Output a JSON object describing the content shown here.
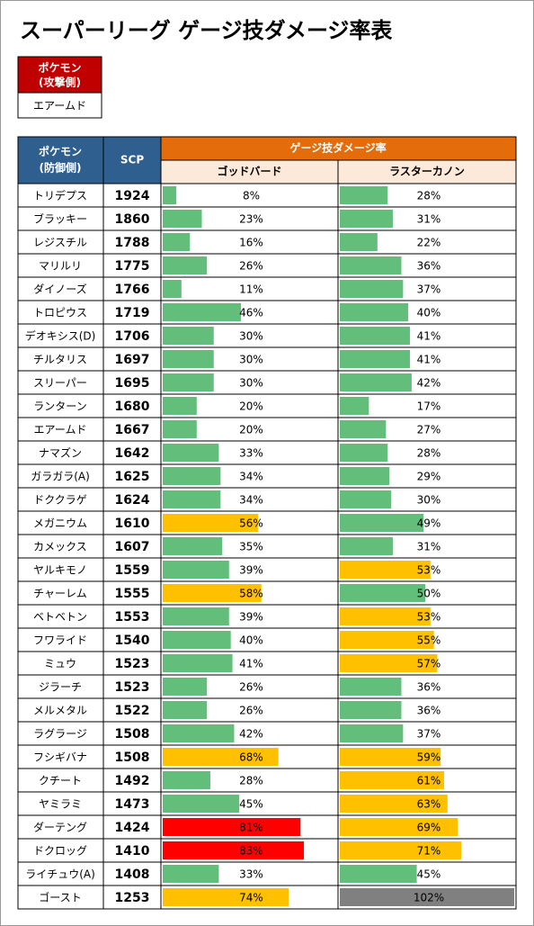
{
  "title": "スーパーリーグ ゲージ技ダメージ率表",
  "attacker": {
    "header": [
      "ポケモン",
      "(攻撃側)"
    ],
    "name": "エアームド"
  },
  "table": {
    "header": {
      "defender": [
        "ポケモン",
        "(防御側)"
      ],
      "scp": "SCP",
      "group": "ゲージ技ダメージ率",
      "moves": [
        "ゴッドバード",
        "ラスターカノン"
      ]
    },
    "rows": [
      {
        "name": "トリデプス",
        "scp": 1924,
        "values": [
          8,
          28
        ],
        "value_labels": [
          "8%",
          "28%"
        ],
        "colors": [
          "#63be7b",
          "#63be7b"
        ]
      },
      {
        "name": "ブラッキー",
        "scp": 1860,
        "values": [
          23,
          31
        ],
        "value_labels": [
          "23%",
          "31%"
        ],
        "colors": [
          "#63be7b",
          "#63be7b"
        ]
      },
      {
        "name": "レジスチル",
        "scp": 1788,
        "values": [
          16,
          22
        ],
        "value_labels": [
          "16%",
          "22%"
        ],
        "colors": [
          "#63be7b",
          "#63be7b"
        ]
      },
      {
        "name": "マリルリ",
        "scp": 1775,
        "values": [
          26,
          36
        ],
        "value_labels": [
          "26%",
          "36%"
        ],
        "colors": [
          "#63be7b",
          "#63be7b"
        ]
      },
      {
        "name": "ダイノーズ",
        "scp": 1766,
        "values": [
          11,
          37
        ],
        "value_labels": [
          "11%",
          "37%"
        ],
        "colors": [
          "#63be7b",
          "#63be7b"
        ]
      },
      {
        "name": "トロピウス",
        "scp": 1719,
        "values": [
          46,
          40
        ],
        "value_labels": [
          "46%",
          "40%"
        ],
        "colors": [
          "#63be7b",
          "#63be7b"
        ]
      },
      {
        "name": "デオキシス(D)",
        "scp": 1706,
        "values": [
          30,
          41
        ],
        "value_labels": [
          "30%",
          "41%"
        ],
        "colors": [
          "#63be7b",
          "#63be7b"
        ]
      },
      {
        "name": "チルタリス",
        "scp": 1697,
        "values": [
          30,
          41
        ],
        "value_labels": [
          "30%",
          "41%"
        ],
        "colors": [
          "#63be7b",
          "#63be7b"
        ]
      },
      {
        "name": "スリーパー",
        "scp": 1695,
        "values": [
          30,
          42
        ],
        "value_labels": [
          "30%",
          "42%"
        ],
        "colors": [
          "#63be7b",
          "#63be7b"
        ]
      },
      {
        "name": "ランターン",
        "scp": 1680,
        "values": [
          20,
          17
        ],
        "value_labels": [
          "20%",
          "17%"
        ],
        "colors": [
          "#63be7b",
          "#63be7b"
        ]
      },
      {
        "name": "エアームド",
        "scp": 1667,
        "values": [
          20,
          27
        ],
        "value_labels": [
          "20%",
          "27%"
        ],
        "colors": [
          "#63be7b",
          "#63be7b"
        ]
      },
      {
        "name": "ナマズン",
        "scp": 1642,
        "values": [
          33,
          28
        ],
        "value_labels": [
          "33%",
          "28%"
        ],
        "colors": [
          "#63be7b",
          "#63be7b"
        ]
      },
      {
        "name": "ガラガラ(A)",
        "scp": 1625,
        "values": [
          34,
          29
        ],
        "value_labels": [
          "34%",
          "29%"
        ],
        "colors": [
          "#63be7b",
          "#63be7b"
        ]
      },
      {
        "name": "ドククラゲ",
        "scp": 1624,
        "values": [
          34,
          30
        ],
        "value_labels": [
          "34%",
          "30%"
        ],
        "colors": [
          "#63be7b",
          "#63be7b"
        ]
      },
      {
        "name": "メガニウム",
        "scp": 1610,
        "values": [
          56,
          49
        ],
        "value_labels": [
          "56%",
          "49%"
        ],
        "colors": [
          "#ffc000",
          "#63be7b"
        ]
      },
      {
        "name": "カメックス",
        "scp": 1607,
        "values": [
          35,
          31
        ],
        "value_labels": [
          "35%",
          "31%"
        ],
        "colors": [
          "#63be7b",
          "#63be7b"
        ]
      },
      {
        "name": "ヤルキモノ",
        "scp": 1559,
        "values": [
          39,
          53
        ],
        "value_labels": [
          "39%",
          "53%"
        ],
        "colors": [
          "#63be7b",
          "#ffc000"
        ]
      },
      {
        "name": "チャーレム",
        "scp": 1555,
        "values": [
          58,
          50
        ],
        "value_labels": [
          "58%",
          "50%"
        ],
        "colors": [
          "#ffc000",
          "#63be7b"
        ]
      },
      {
        "name": "ベトベトン",
        "scp": 1553,
        "values": [
          39,
          53
        ],
        "value_labels": [
          "39%",
          "53%"
        ],
        "colors": [
          "#63be7b",
          "#ffc000"
        ]
      },
      {
        "name": "フワライド",
        "scp": 1540,
        "values": [
          40,
          55
        ],
        "value_labels": [
          "40%",
          "55%"
        ],
        "colors": [
          "#63be7b",
          "#ffc000"
        ]
      },
      {
        "name": "ミュウ",
        "scp": 1523,
        "values": [
          41,
          57
        ],
        "value_labels": [
          "41%",
          "57%"
        ],
        "colors": [
          "#63be7b",
          "#ffc000"
        ]
      },
      {
        "name": "ジラーチ",
        "scp": 1523,
        "values": [
          26,
          36
        ],
        "value_labels": [
          "26%",
          "36%"
        ],
        "colors": [
          "#63be7b",
          "#63be7b"
        ]
      },
      {
        "name": "メルメタル",
        "scp": 1522,
        "values": [
          26,
          36
        ],
        "value_labels": [
          "26%",
          "36%"
        ],
        "colors": [
          "#63be7b",
          "#63be7b"
        ]
      },
      {
        "name": "ラグラージ",
        "scp": 1508,
        "values": [
          42,
          37
        ],
        "value_labels": [
          "42%",
          "37%"
        ],
        "colors": [
          "#63be7b",
          "#63be7b"
        ]
      },
      {
        "name": "フシギバナ",
        "scp": 1508,
        "values": [
          68,
          59
        ],
        "value_labels": [
          "68%",
          "59%"
        ],
        "colors": [
          "#ffc000",
          "#ffc000"
        ]
      },
      {
        "name": "クチート",
        "scp": 1492,
        "values": [
          28,
          61
        ],
        "value_labels": [
          "28%",
          "61%"
        ],
        "colors": [
          "#63be7b",
          "#ffc000"
        ]
      },
      {
        "name": "ヤミラミ",
        "scp": 1473,
        "values": [
          45,
          63
        ],
        "value_labels": [
          "45%",
          "63%"
        ],
        "colors": [
          "#63be7b",
          "#ffc000"
        ]
      },
      {
        "name": "ダーテング",
        "scp": 1424,
        "values": [
          81,
          69
        ],
        "value_labels": [
          "81%",
          "69%"
        ],
        "colors": [
          "#ff0000",
          "#ffc000"
        ]
      },
      {
        "name": "ドクロッグ",
        "scp": 1410,
        "values": [
          83,
          71
        ],
        "value_labels": [
          "83%",
          "71%"
        ],
        "colors": [
          "#ff0000",
          "#ffc000"
        ]
      },
      {
        "name": "ライチュウ(A)",
        "scp": 1408,
        "values": [
          33,
          45
        ],
        "value_labels": [
          "33%",
          "45%"
        ],
        "colors": [
          "#63be7b",
          "#63be7b"
        ]
      },
      {
        "name": "ゴースト",
        "scp": 1253,
        "values": [
          74,
          102
        ],
        "value_labels": [
          "74%",
          "102%"
        ],
        "colors": [
          "#ffc000",
          "#808080"
        ]
      }
    ]
  }
}
